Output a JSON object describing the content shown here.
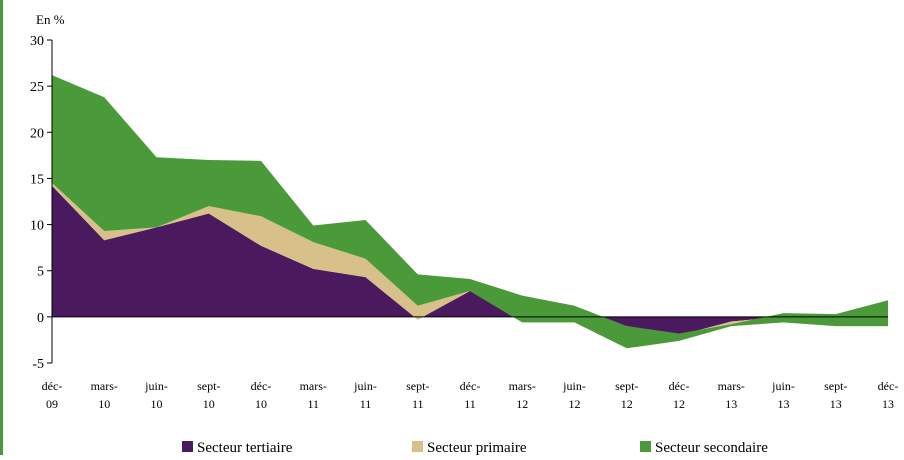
{
  "chart_data": {
    "type": "stacked_area",
    "ylabel": "En %",
    "categories": [
      "déc-09",
      "mars-10",
      "juin-10",
      "sept-10",
      "déc-10",
      "mars-11",
      "juin-11",
      "sept-11",
      "déc-11",
      "mars-12",
      "juin-12",
      "sept-12",
      "déc-12",
      "mars-13",
      "juin-13",
      "sept-13",
      "déc-13"
    ],
    "series": [
      {
        "name": "Secteur tertiaire",
        "color": "#4b1a5e",
        "values": [
          14.2,
          8.3,
          9.7,
          11.2,
          7.7,
          5.2,
          4.3,
          -0.3,
          2.8,
          -0.3,
          -0.1,
          -1.0,
          -2.0,
          -0.5,
          0,
          -0.3,
          -0.5
        ]
      },
      {
        "name": "Secteur primaire",
        "color": "#d8c08a",
        "values": [
          0.3,
          1.0,
          0,
          0.8,
          3.2,
          2.9,
          2.0,
          1.5,
          0,
          -0.3,
          -0.5,
          -2.4,
          -0.6,
          -0.5,
          -0.6,
          -0.7,
          -0.5
        ]
      },
      {
        "name": "Secteur secondaire",
        "color": "#4a9a3a",
        "values": [
          11.7,
          14.5,
          7.6,
          5.0,
          6.0,
          1.8,
          4.2,
          3.4,
          1.3,
          2.9,
          1.8,
          2.4,
          0.8,
          0.2,
          1.0,
          1.3,
          2.8
        ]
      }
    ],
    "ylim": [
      -5,
      30
    ],
    "yticks": [
      -5,
      0,
      5,
      10,
      15,
      20,
      25,
      30
    ],
    "legend": "bottom"
  }
}
